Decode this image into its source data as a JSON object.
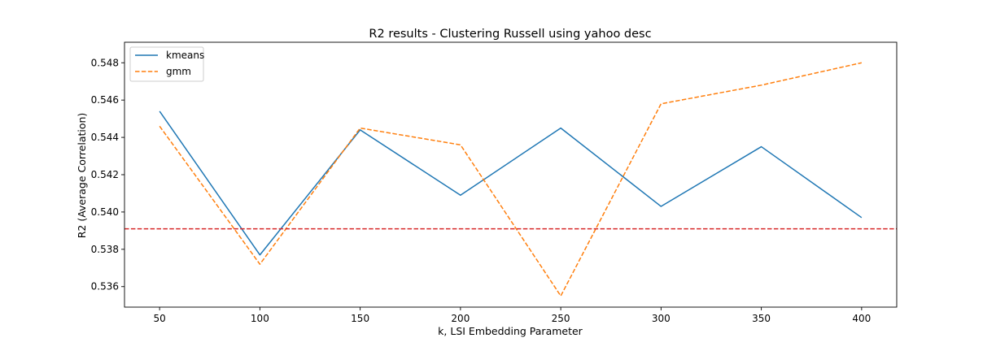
{
  "chart_data": {
    "type": "line",
    "title": "R2 results - Clustering Russell using yahoo desc",
    "xlabel": "k, LSI Embedding Parameter",
    "ylabel": "R2 (Average Correlation)",
    "x": [
      50,
      100,
      150,
      200,
      250,
      300,
      350,
      400
    ],
    "x_ticks": [
      "50",
      "100",
      "150",
      "200",
      "250",
      "300",
      "350",
      "400"
    ],
    "y_ticks": [
      "0.536",
      "0.538",
      "0.540",
      "0.542",
      "0.544",
      "0.546",
      "0.548"
    ],
    "xlim": [
      32.5,
      417.5
    ],
    "ylim": [
      0.5349,
      0.5491
    ],
    "grid": false,
    "legend_position": "upper-left",
    "series": [
      {
        "name": "kmeans",
        "color": "#1f77b4",
        "dash": "solid",
        "values": [
          0.5454,
          0.5377,
          0.5444,
          0.5409,
          0.5445,
          0.5403,
          0.5435,
          0.5397
        ]
      },
      {
        "name": "gmm",
        "color": "#ff7f0e",
        "dash": "dashed",
        "values": [
          0.5446,
          0.5372,
          0.5445,
          0.5436,
          0.5355,
          0.5458,
          0.5468,
          0.548
        ]
      }
    ],
    "reference_line": {
      "y": 0.5391,
      "color": "#d62728",
      "dash": "dashed"
    }
  }
}
